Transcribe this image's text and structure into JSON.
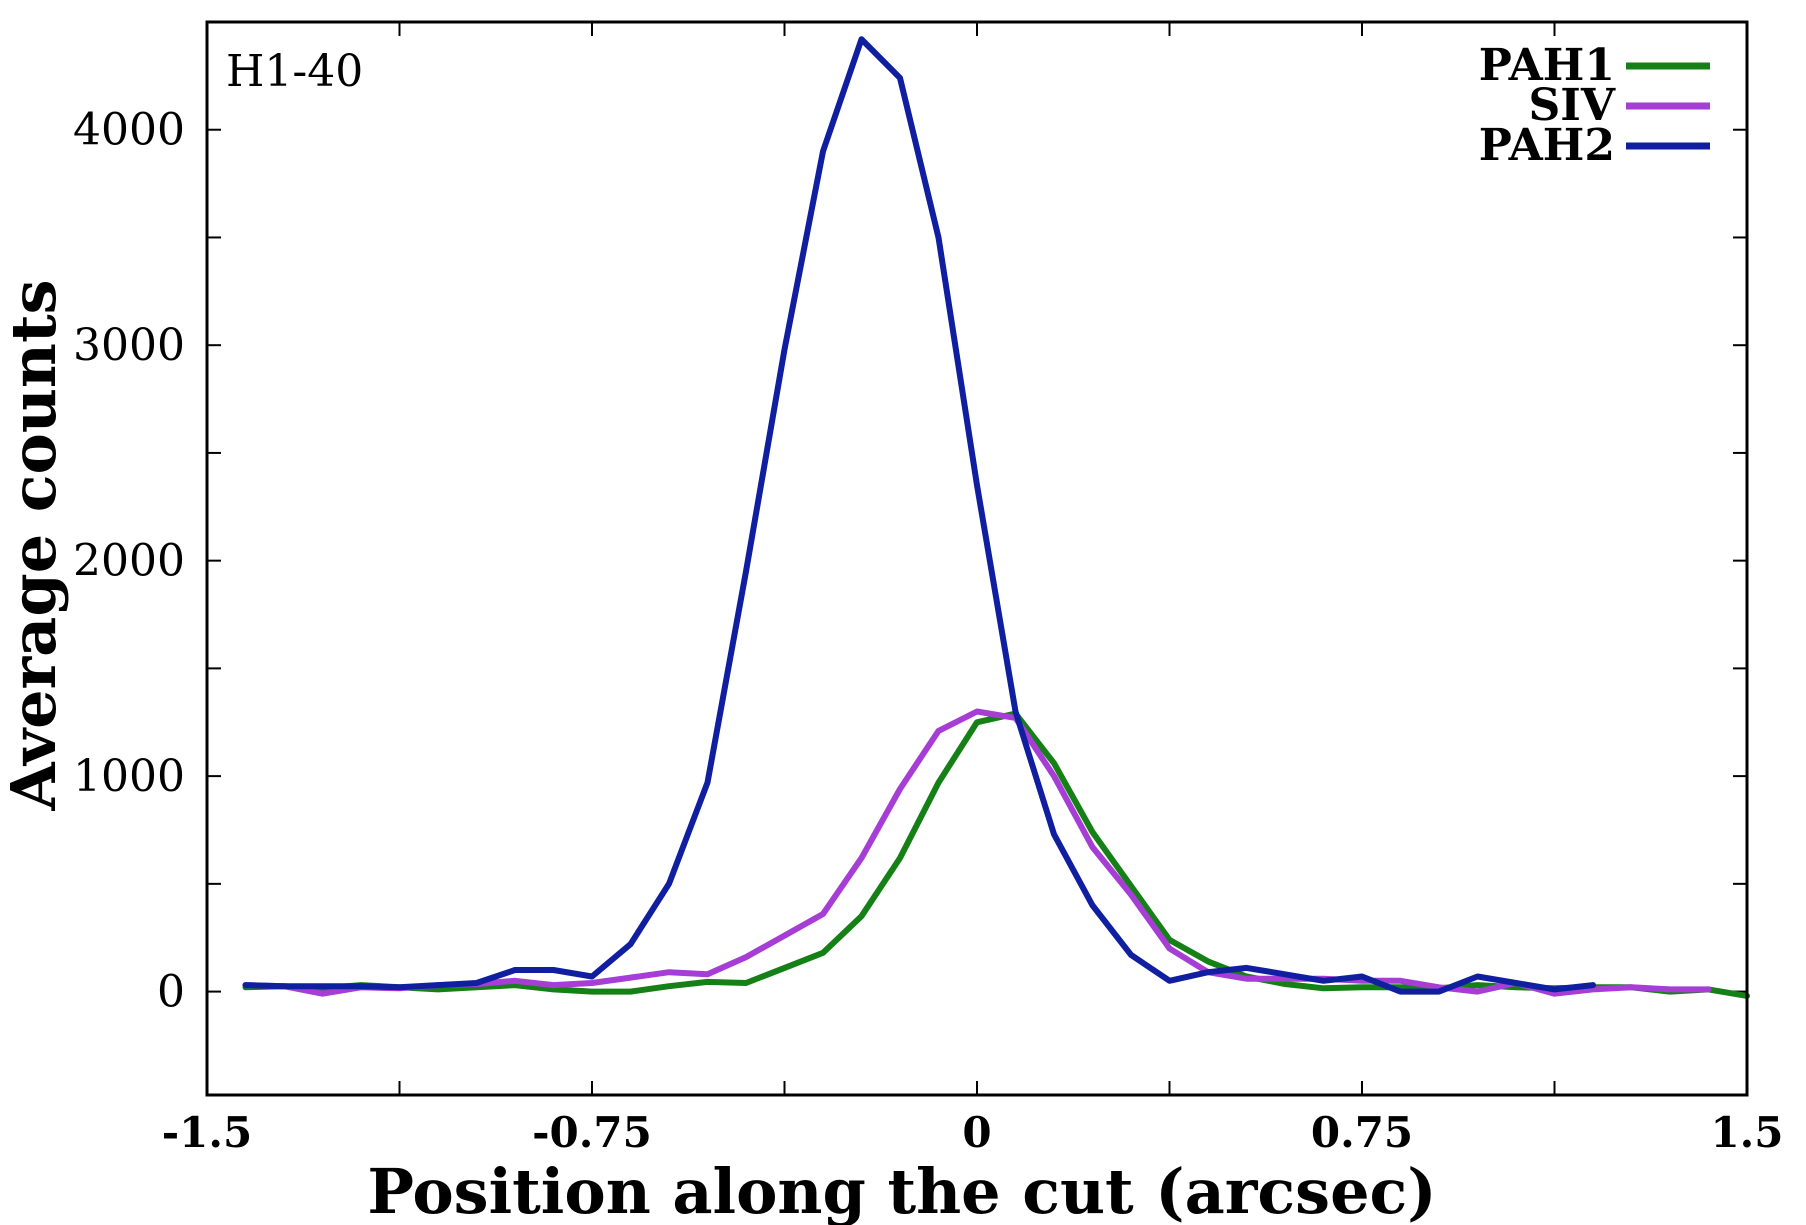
{
  "chart_data": {
    "type": "line",
    "title": "",
    "annotation": "H1-40",
    "xlabel": "Position along the cut (arcsec)",
    "ylabel": "Average counts",
    "xlim": [
      -1.5,
      1.5
    ],
    "ylim": [
      -480,
      4500
    ],
    "x_ticks": [
      -1.5,
      -1.125,
      -0.75,
      -0.375,
      0,
      0.375,
      0.75,
      1.125,
      1.5
    ],
    "x_tick_labels": [
      "-1.5",
      "",
      "-0.75",
      "",
      "0",
      "",
      "0.75",
      "",
      "1.5"
    ],
    "y_ticks": [
      0,
      500,
      1000,
      1500,
      2000,
      2500,
      3000,
      3500,
      4000
    ],
    "y_tick_labels": [
      "0",
      "",
      "1000",
      "",
      "2000",
      "",
      "3000",
      "",
      "4000"
    ],
    "grid": false,
    "legend_position": "top-right",
    "series": [
      {
        "name": "PAH1",
        "color": "#158015",
        "x": [
          -1.425,
          -1.35,
          -1.275,
          -1.2,
          -1.125,
          -1.05,
          -0.975,
          -0.9,
          -0.825,
          -0.75,
          -0.675,
          -0.6,
          -0.525,
          -0.45,
          -0.375,
          -0.3,
          -0.225,
          -0.15,
          -0.075,
          0,
          0.075,
          0.15,
          0.225,
          0.3,
          0.375,
          0.45,
          0.525,
          0.6,
          0.675,
          0.75,
          0.825,
          0.9,
          0.975,
          1.05,
          1.125,
          1.2,
          1.275,
          1.35,
          1.425,
          1.5
        ],
        "values": [
          20,
          25,
          15,
          30,
          20,
          10,
          20,
          30,
          10,
          0,
          0,
          25,
          45,
          40,
          110,
          180,
          350,
          620,
          970,
          1250,
          1290,
          1060,
          740,
          490,
          240,
          140,
          70,
          35,
          15,
          20,
          20,
          15,
          30,
          20,
          15,
          20,
          20,
          0,
          10,
          -20
        ]
      },
      {
        "name": "SIV",
        "color": "#a63ed6",
        "x": [
          -1.425,
          -1.35,
          -1.275,
          -1.2,
          -1.125,
          -1.05,
          -0.975,
          -0.9,
          -0.825,
          -0.75,
          -0.675,
          -0.6,
          -0.525,
          -0.45,
          -0.375,
          -0.3,
          -0.225,
          -0.15,
          -0.075,
          0,
          0.075,
          0.15,
          0.225,
          0.3,
          0.375,
          0.45,
          0.525,
          0.6,
          0.675,
          0.75,
          0.825,
          0.9,
          0.975,
          1.05,
          1.125,
          1.2,
          1.275,
          1.35,
          1.425
        ],
        "values": [
          30,
          25,
          -10,
          20,
          15,
          30,
          35,
          50,
          30,
          40,
          65,
          90,
          80,
          160,
          260,
          360,
          620,
          940,
          1210,
          1300,
          1270,
          1000,
          670,
          450,
          200,
          90,
          60,
          60,
          60,
          50,
          50,
          20,
          0,
          40,
          -10,
          10,
          20,
          10,
          10
        ]
      },
      {
        "name": "PAH2",
        "color": "#101ea0",
        "x": [
          -1.425,
          -1.35,
          -1.275,
          -1.2,
          -1.125,
          -1.05,
          -0.975,
          -0.9,
          -0.825,
          -0.75,
          -0.675,
          -0.6,
          -0.525,
          -0.45,
          -0.375,
          -0.3,
          -0.225,
          -0.15,
          -0.075,
          0,
          0.075,
          0.15,
          0.225,
          0.3,
          0.375,
          0.45,
          0.525,
          0.6,
          0.675,
          0.75,
          0.825,
          0.9,
          0.975,
          1.05,
          1.125,
          1.2
        ],
        "values": [
          30,
          25,
          25,
          25,
          20,
          30,
          40,
          100,
          100,
          70,
          220,
          500,
          970,
          1950,
          2980,
          3900,
          4420,
          4240,
          3500,
          2350,
          1300,
          730,
          400,
          170,
          50,
          90,
          110,
          80,
          50,
          70,
          0,
          0,
          70,
          40,
          10,
          30
        ]
      }
    ]
  }
}
